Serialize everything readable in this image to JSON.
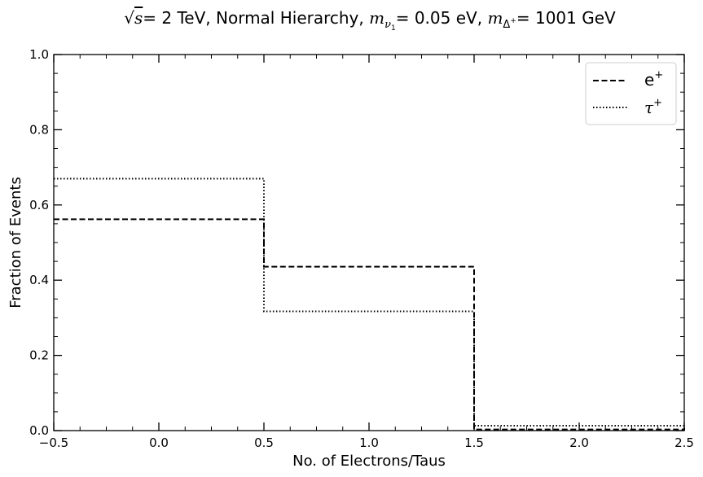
{
  "chart_data": {
    "type": "line",
    "title": {
      "prefix": "= 2 TeV, Normal Hierarchy, ",
      "s_symbol": "s",
      "m_symbol": "m",
      "nu_sub": "ν",
      "nu_subsub": "1",
      "nu_value": "= 0.05 eV, ",
      "delta_sub": "Δ",
      "delta_sup": "+",
      "delta_value": "= 1001 GeV"
    },
    "xlabel": "No. of Electrons/Taus",
    "ylabel": "Fraction of Events",
    "xlim": [
      -0.5,
      2.5
    ],
    "ylim": [
      0.0,
      1.0
    ],
    "x_ticks": [
      "−0.5",
      "0.0",
      "0.5",
      "1.0",
      "1.5",
      "2.0",
      "2.5"
    ],
    "y_ticks": [
      "0.0",
      "0.2",
      "0.4",
      "0.6",
      "0.8",
      "1.0"
    ],
    "bin_edges": [
      -0.5,
      0.5,
      1.5,
      2.5
    ],
    "grid": false,
    "legend_position": "top-right",
    "series": [
      {
        "name": "e",
        "sup": "+",
        "style": "dashed",
        "color": "#000000",
        "values": [
          0.562,
          0.436,
          0.003
        ]
      },
      {
        "name": "τ",
        "sup": "+",
        "style": "dotted",
        "color": "#000000",
        "values": [
          0.67,
          0.317,
          0.013
        ]
      }
    ]
  }
}
